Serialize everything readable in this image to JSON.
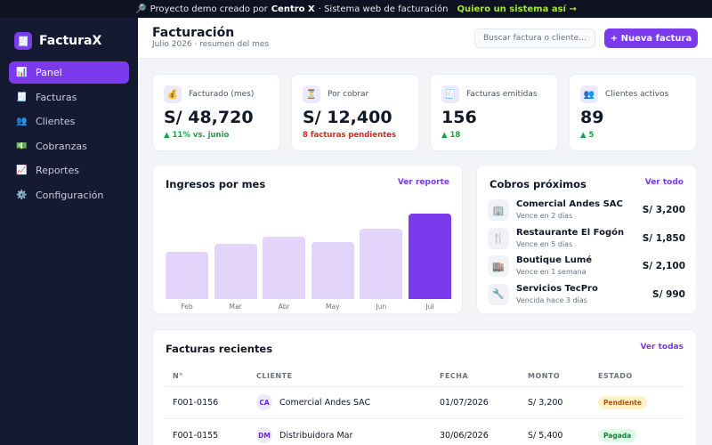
{
  "promo": {
    "icon": "magnifier-icon",
    "prefix": "Proyecto demo creado por",
    "brand": "Centro X",
    "suffix": "· Sistema web de facturación",
    "cta": "Quiero un sistema así →"
  },
  "sidebar": {
    "app_name": "FacturaX",
    "logo_glyph": "🧾",
    "items": [
      {
        "label": "Panel",
        "icon": "chart-icon",
        "glyph": "📊",
        "active": true
      },
      {
        "label": "Facturas",
        "icon": "receipt-icon",
        "glyph": "🧾",
        "active": false
      },
      {
        "label": "Clientes",
        "icon": "users-icon",
        "glyph": "👥",
        "active": false
      },
      {
        "label": "Cobranzas",
        "icon": "money-icon",
        "glyph": "💵",
        "active": false
      },
      {
        "label": "Reportes",
        "icon": "trend-icon",
        "glyph": "📈",
        "active": false
      },
      {
        "label": "Configuración",
        "icon": "gear-icon",
        "glyph": "⚙️",
        "active": false
      }
    ]
  },
  "header": {
    "title": "Facturación",
    "subtitle": "Julio 2026 · resumen del mes",
    "search_placeholder": "Buscar factura o cliente…",
    "new_button": "+ Nueva factura"
  },
  "stats": [
    {
      "label": "Facturado (mes)",
      "glyph": "💰",
      "value": "S/ 48,720",
      "delta": "▲ 11% vs. junio",
      "tone": "green"
    },
    {
      "label": "Por cobrar",
      "glyph": "⏳",
      "value": "S/ 12,400",
      "delta": "8 facturas pendientes",
      "tone": "red"
    },
    {
      "label": "Facturas emitidas",
      "glyph": "🧾",
      "value": "156",
      "delta": "▲ 18",
      "tone": "green"
    },
    {
      "label": "Clientes activos",
      "glyph": "👥",
      "value": "89",
      "delta": "▲ 5",
      "tone": "green"
    }
  ],
  "revenue": {
    "title": "Ingresos por mes",
    "link": "Ver reporte"
  },
  "chart_data": {
    "type": "bar",
    "categories": [
      "Feb",
      "Mar",
      "Abr",
      "May",
      "Jun",
      "Jul"
    ],
    "values": [
      53,
      62,
      70,
      64,
      79,
      96
    ],
    "ylim": [
      0,
      100
    ],
    "highlight_index": 5,
    "colors": {
      "bar": "#e2d4fb",
      "highlight": "#7c3aed"
    }
  },
  "cobros": {
    "title": "Cobros próximos",
    "link": "Ver todo",
    "items": [
      {
        "name": "Comercial Andes SAC",
        "sub": "Vence en 2 días",
        "amount": "S/ 3,200",
        "glyph": "🏢"
      },
      {
        "name": "Restaurante El Fogón",
        "sub": "Vence en 5 días",
        "amount": "S/ 1,850",
        "glyph": "🍴"
      },
      {
        "name": "Boutique Lumé",
        "sub": "Vence en 1 semana",
        "amount": "S/ 2,100",
        "glyph": "🏬"
      },
      {
        "name": "Servicios TecPro",
        "sub": "Vencida hace 3 días",
        "amount": "S/ 990",
        "glyph": "🔧"
      }
    ]
  },
  "invoices": {
    "title": "Facturas recientes",
    "link": "Ver todas",
    "columns": [
      "N°",
      "CLIENTE",
      "FECHA",
      "MONTO",
      "ESTADO"
    ],
    "rows": [
      {
        "number": "F001-0156",
        "initials": "CA",
        "client": "Comercial Andes SAC",
        "date": "01/07/2026",
        "amount": "S/ 3,200",
        "status": "Pendiente",
        "status_kind": "pend"
      },
      {
        "number": "F001-0155",
        "initials": "DM",
        "client": "Distribuidora Mar",
        "date": "30/06/2026",
        "amount": "S/ 5,400",
        "status": "Pagada",
        "status_kind": "paid"
      }
    ]
  }
}
